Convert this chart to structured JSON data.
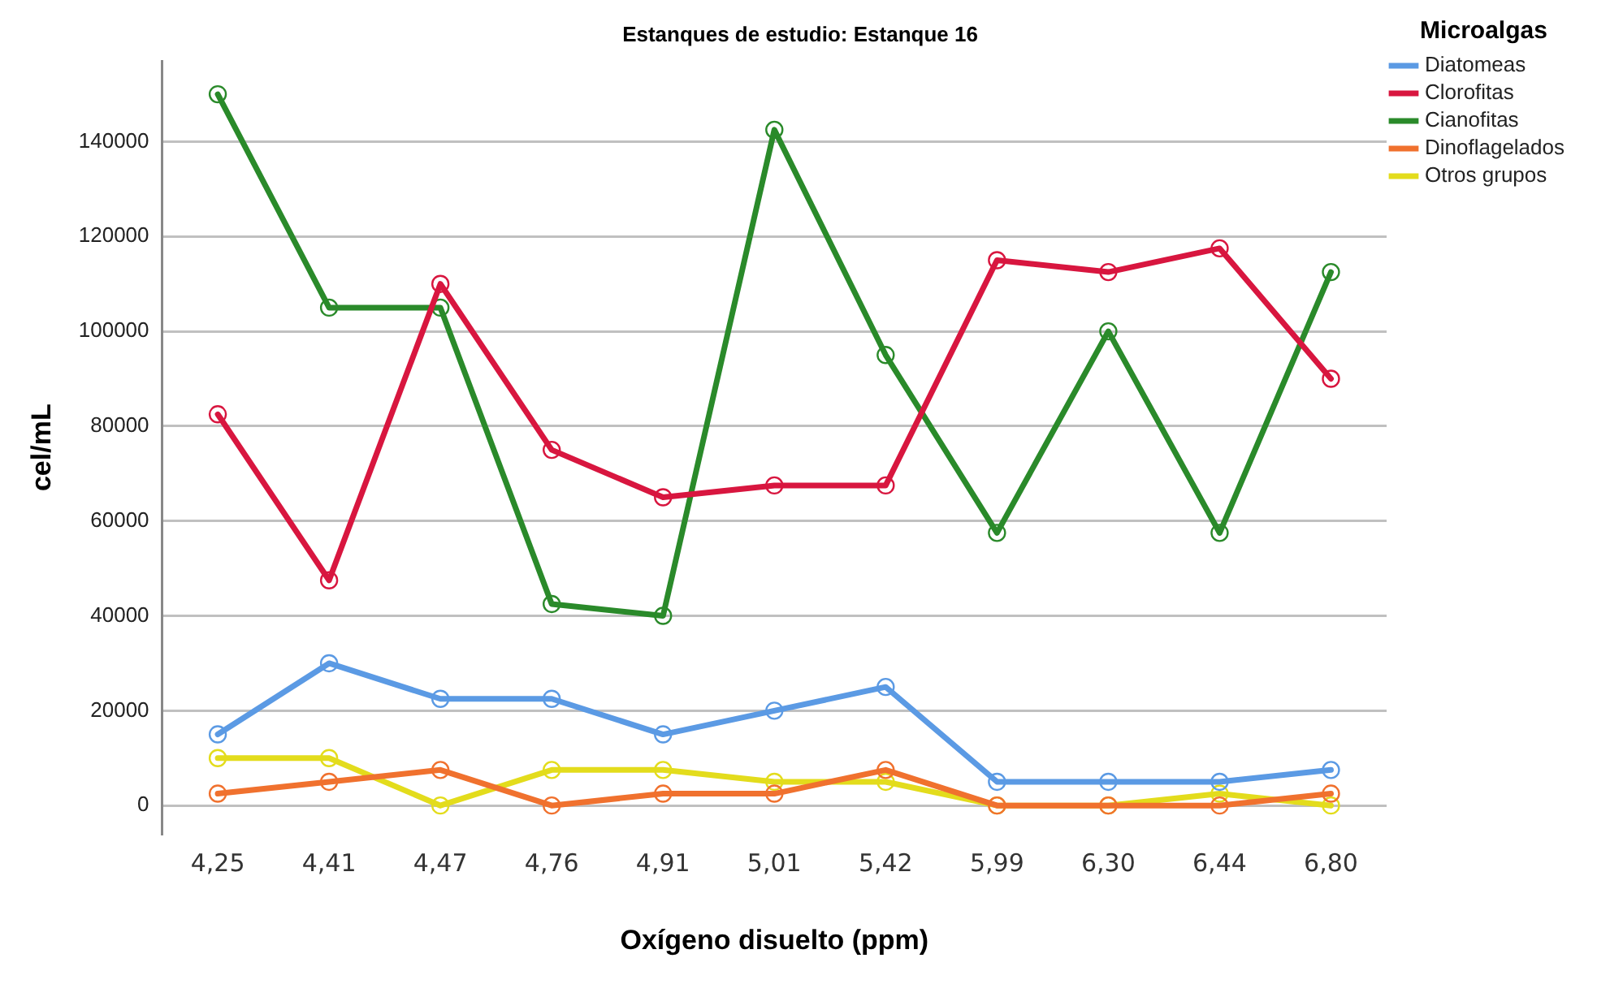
{
  "chart_data": {
    "type": "line",
    "title": "Estanques de estudio: Estanque 16",
    "xlabel": "Oxígeno disuelto (ppm)",
    "ylabel": "cel/mL",
    "legend_title": "Microalgas",
    "categories": [
      "4,25",
      "4,41",
      "4,47",
      "4,76",
      "4,91",
      "5,01",
      "5,42",
      "5,99",
      "6,30",
      "6,44",
      "6,80"
    ],
    "series": [
      {
        "name": "Diatomeas",
        "color": "#5b9ae4",
        "values": [
          15000,
          30000,
          22500,
          22500,
          15000,
          20000,
          25000,
          5000,
          5000,
          5000,
          7500
        ]
      },
      {
        "name": "Clorofitas",
        "color": "#d8163f",
        "values": [
          82500,
          47500,
          110000,
          75000,
          65000,
          67500,
          67500,
          115000,
          112500,
          117500,
          90000
        ]
      },
      {
        "name": "Cianofitas",
        "color": "#2a8a2a",
        "values": [
          150000,
          105000,
          105000,
          42500,
          40000,
          142500,
          95000,
          57500,
          100000,
          57500,
          112500
        ]
      },
      {
        "name": "Dinoflagelados",
        "color": "#f0712e",
        "values": [
          2500,
          5000,
          7500,
          0,
          2500,
          2500,
          7500,
          0,
          0,
          0,
          2500
        ]
      },
      {
        "name": "Otros grupos",
        "color": "#e3dc1c",
        "values": [
          10000,
          10000,
          0,
          7500,
          7500,
          5000,
          5000,
          0,
          0,
          2500,
          0
        ]
      }
    ],
    "ylim": [
      -6000,
      157000
    ],
    "yticks": [
      0,
      20000,
      40000,
      60000,
      80000,
      100000,
      120000,
      140000
    ],
    "grid": "y",
    "legend": "right",
    "marker": "circle",
    "line_style": "solid"
  }
}
